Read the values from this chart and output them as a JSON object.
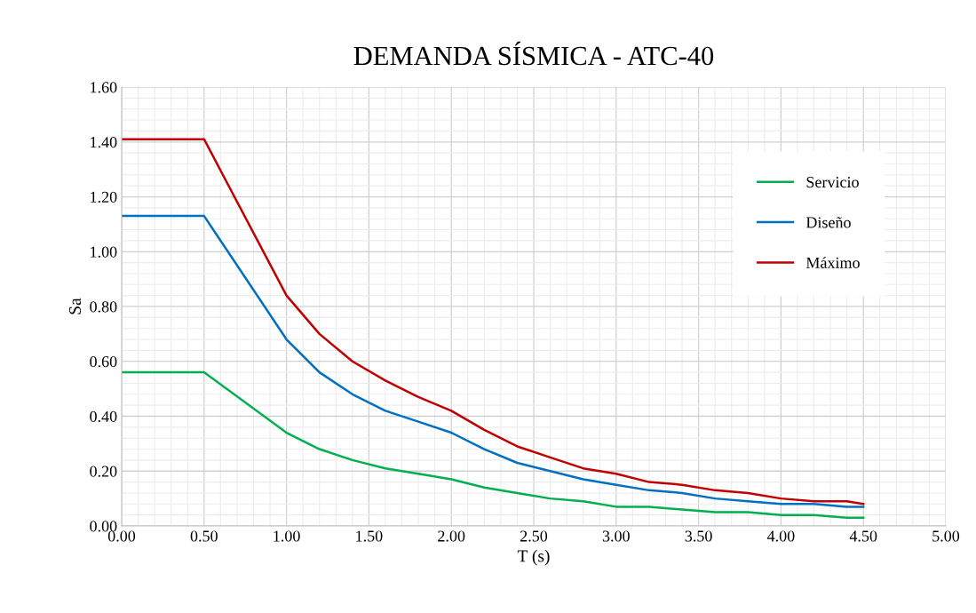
{
  "chart_data": {
    "type": "line",
    "title": "DEMANDA SÍSMICA - ATC-40",
    "xlabel": "T (s)",
    "ylabel": "Sa",
    "x": [
      0,
      0.5,
      1.0,
      1.2,
      1.4,
      1.6,
      1.8,
      2.0,
      2.2,
      2.4,
      2.6,
      2.8,
      3.0,
      3.2,
      3.4,
      3.6,
      3.8,
      4.0,
      4.2,
      4.4,
      4.5
    ],
    "series": [
      {
        "name": "Servicio",
        "color": "#00b050",
        "values": [
          0.56,
          0.56,
          0.34,
          0.28,
          0.24,
          0.21,
          0.19,
          0.17,
          0.14,
          0.12,
          0.1,
          0.09,
          0.07,
          0.07,
          0.06,
          0.05,
          0.05,
          0.04,
          0.04,
          0.03,
          0.03
        ]
      },
      {
        "name": "Diseño",
        "color": "#0070c0",
        "values": [
          1.13,
          1.13,
          0.68,
          0.56,
          0.48,
          0.42,
          0.38,
          0.34,
          0.28,
          0.23,
          0.2,
          0.17,
          0.15,
          0.13,
          0.12,
          0.1,
          0.09,
          0.08,
          0.08,
          0.07,
          0.07
        ]
      },
      {
        "name": "Máximo",
        "color": "#c00000",
        "values": [
          1.41,
          1.41,
          0.84,
          0.7,
          0.6,
          0.53,
          0.47,
          0.42,
          0.35,
          0.29,
          0.25,
          0.21,
          0.19,
          0.16,
          0.15,
          0.13,
          0.12,
          0.1,
          0.09,
          0.09,
          0.08
        ]
      }
    ],
    "xlim": [
      0,
      5
    ],
    "xticks": [
      {
        "value": 0,
        "label": "0.00"
      },
      {
        "value": 0.5,
        "label": "0.50"
      },
      {
        "value": 1,
        "label": "1.00"
      },
      {
        "value": 1.5,
        "label": "1.50"
      },
      {
        "value": 2,
        "label": "2.00"
      },
      {
        "value": 2.5,
        "label": "2.50"
      },
      {
        "value": 3,
        "label": "3.00"
      },
      {
        "value": 3.5,
        "label": "3.50"
      },
      {
        "value": 4,
        "label": "4.00"
      },
      {
        "value": 4.5,
        "label": "4.50"
      },
      {
        "value": 5,
        "label": "5.00"
      }
    ],
    "ylim": [
      0,
      1.6
    ],
    "yticks": [
      {
        "value": 0,
        "label": "0.00"
      },
      {
        "value": 0.2,
        "label": "0.20"
      },
      {
        "value": 0.4,
        "label": "0.40"
      },
      {
        "value": 0.6,
        "label": "0.60"
      },
      {
        "value": 0.8,
        "label": "0.80"
      },
      {
        "value": 1.0,
        "label": "1.00"
      },
      {
        "value": 1.2,
        "label": "1.20"
      },
      {
        "value": 1.4,
        "label": "1.40"
      },
      {
        "value": 1.6,
        "label": "1.60"
      }
    ],
    "grid": true,
    "legend": "top right",
    "marker": "none",
    "line_style": "solid"
  }
}
